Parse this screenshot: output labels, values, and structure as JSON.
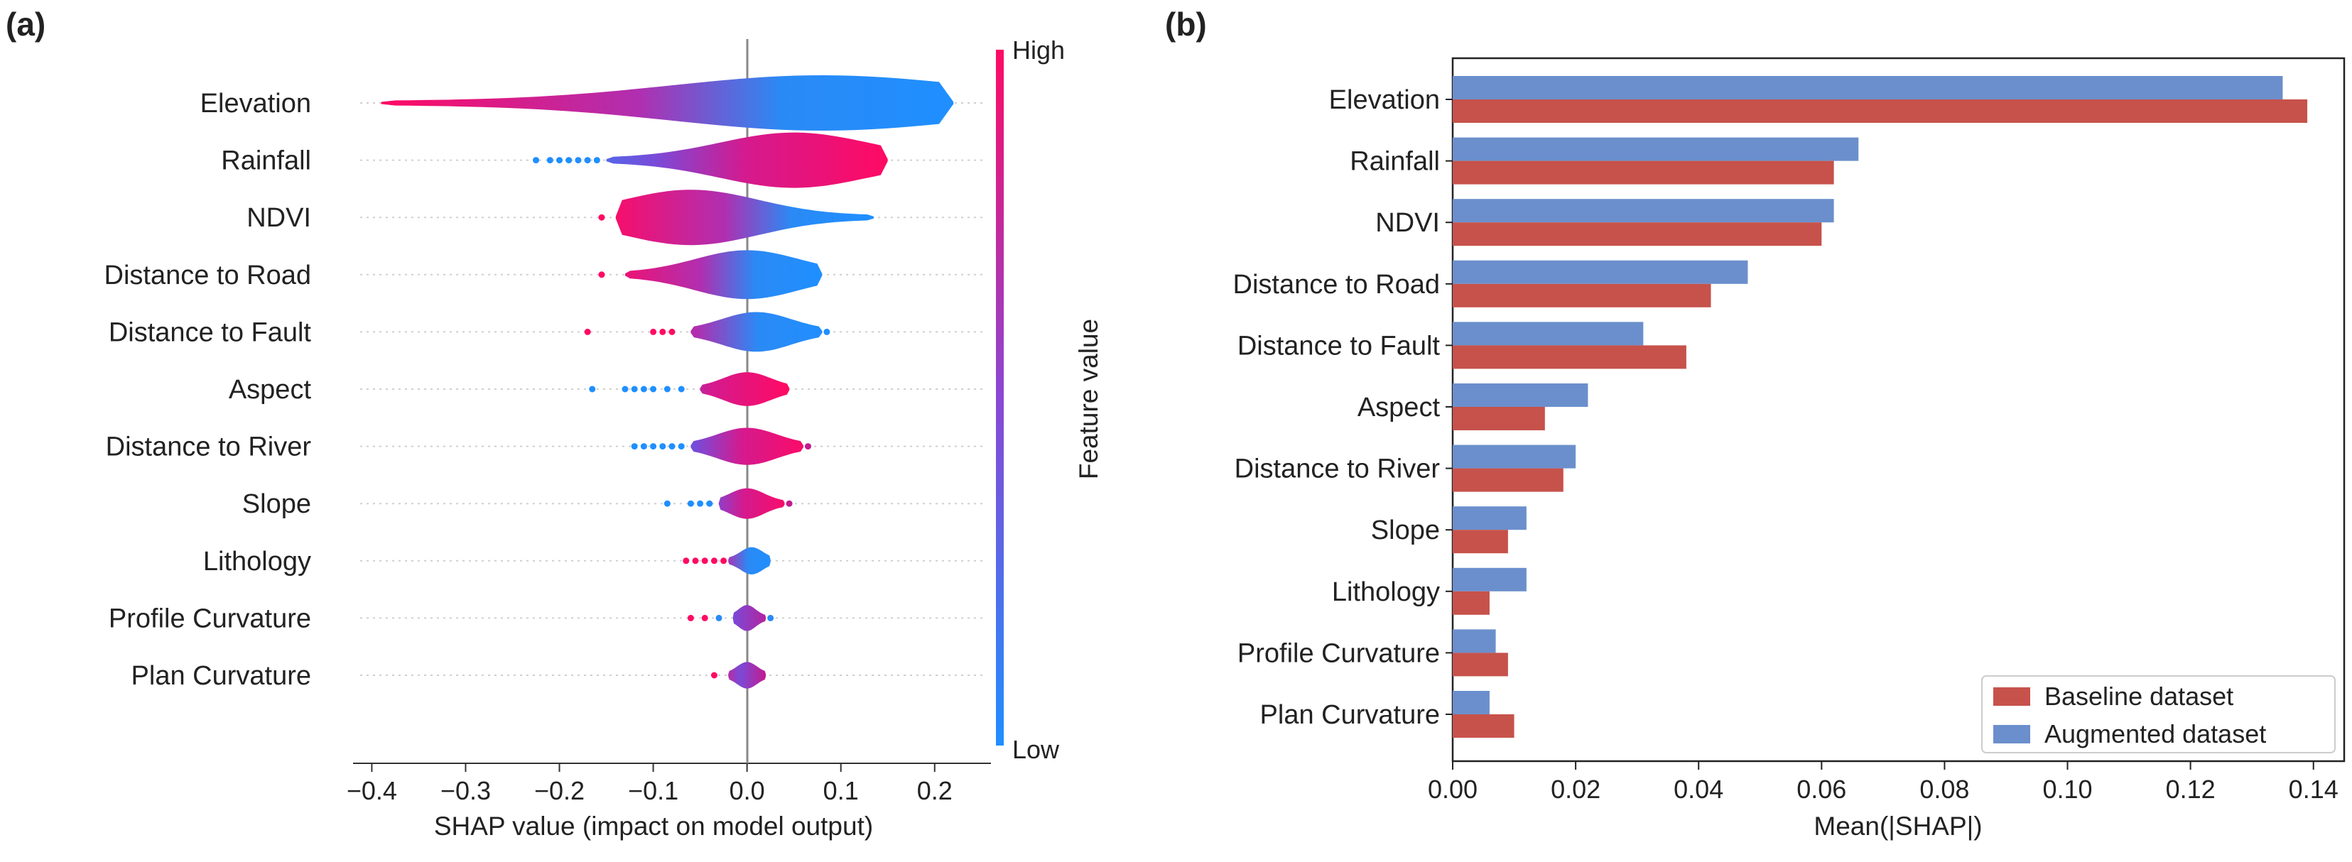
{
  "panel_labels": {
    "a": "(a)",
    "b": "(b)"
  },
  "colors": {
    "shap_low": "#1f8fff",
    "shap_high": "#ff0a63",
    "baseline": "#c6524b",
    "augmented": "#6b8fcc"
  },
  "chart_data": [
    {
      "type": "scatter",
      "subtype": "shap-beeswarm-violin",
      "title": "",
      "xlabel": "SHAP value (impact on model output)",
      "ylabel": "",
      "xlim": [
        -0.42,
        0.26
      ],
      "xticks": [
        -0.4,
        -0.3,
        -0.2,
        -0.1,
        0.0,
        0.1,
        0.2
      ],
      "xtick_labels": [
        "−0.4",
        "−0.3",
        "−0.2",
        "−0.1",
        "0.0",
        "0.1",
        "0.2"
      ],
      "colorbar": {
        "label": "Feature value",
        "high": "High",
        "low": "Low"
      },
      "features": [
        {
          "name": "Elevation",
          "min": -0.39,
          "max": 0.22,
          "core_min": -0.39,
          "core_max": 0.22,
          "peak": 0.08,
          "low_side": "right",
          "scatter": []
        },
        {
          "name": "Rainfall",
          "min": -0.23,
          "max": 0.15,
          "core_min": -0.15,
          "core_max": 0.15,
          "peak": 0.05,
          "low_side": "left",
          "scatter": [
            -0.225,
            -0.21,
            -0.2,
            -0.19,
            -0.18,
            -0.17,
            -0.16
          ]
        },
        {
          "name": "NDVI",
          "min": -0.155,
          "max": 0.135,
          "core_min": -0.14,
          "core_max": 0.135,
          "peak": -0.06,
          "low_side": "right",
          "scatter": [
            -0.155
          ]
        },
        {
          "name": "Distance to Road",
          "min": -0.155,
          "max": 0.08,
          "core_min": -0.13,
          "core_max": 0.08,
          "peak": 0.0,
          "low_side": "right",
          "scatter": [
            -0.155
          ]
        },
        {
          "name": "Distance to Fault",
          "min": -0.17,
          "max": 0.09,
          "core_min": -0.06,
          "core_max": 0.08,
          "peak": 0.01,
          "low_side": "right",
          "scatter": [
            -0.17,
            -0.1,
            -0.09,
            -0.08,
            0.085
          ]
        },
        {
          "name": "Aspect",
          "min": -0.165,
          "max": 0.045,
          "core_min": -0.05,
          "core_max": 0.045,
          "peak": 0.0,
          "low_side": "left",
          "scatter": [
            -0.165,
            -0.13,
            -0.12,
            -0.11,
            -0.1,
            -0.085,
            -0.07
          ]
        },
        {
          "name": "Distance to River",
          "min": -0.12,
          "max": 0.07,
          "core_min": -0.06,
          "core_max": 0.06,
          "peak": 0.0,
          "low_side": "left",
          "scatter": [
            -0.12,
            -0.11,
            -0.1,
            -0.09,
            -0.08,
            -0.07,
            0.065
          ]
        },
        {
          "name": "Slope",
          "min": -0.085,
          "max": 0.05,
          "core_min": -0.03,
          "core_max": 0.04,
          "peak": 0.0,
          "low_side": "left",
          "scatter": [
            -0.085,
            -0.06,
            -0.05,
            -0.04,
            0.045
          ]
        },
        {
          "name": "Lithology",
          "min": -0.065,
          "max": 0.03,
          "core_min": -0.02,
          "core_max": 0.025,
          "peak": 0.005,
          "low_side": "right",
          "scatter": [
            -0.065,
            -0.055,
            -0.045,
            -0.035,
            -0.025
          ]
        },
        {
          "name": "Profile Curvature",
          "min": -0.06,
          "max": 0.03,
          "core_min": -0.015,
          "core_max": 0.02,
          "peak": 0.0,
          "low_side": "mixed",
          "scatter": [
            -0.06,
            -0.045,
            -0.03,
            0.025
          ]
        },
        {
          "name": "Plan Curvature",
          "min": -0.035,
          "max": 0.02,
          "core_min": -0.02,
          "core_max": 0.02,
          "peak": 0.0,
          "low_side": "mixed",
          "scatter": [
            -0.035
          ]
        }
      ]
    },
    {
      "type": "bar",
      "orientation": "horizontal",
      "title": "",
      "xlabel": "Mean(|SHAP|)",
      "ylabel": "",
      "xlim": [
        0.0,
        0.145
      ],
      "xticks": [
        0.0,
        0.02,
        0.04,
        0.06,
        0.08,
        0.1,
        0.12,
        0.14
      ],
      "xtick_labels": [
        "0.00",
        "0.02",
        "0.04",
        "0.06",
        "0.08",
        "0.10",
        "0.12",
        "0.14"
      ],
      "categories": [
        "Elevation",
        "Rainfall",
        "NDVI",
        "Distance to Road",
        "Distance to Fault",
        "Aspect",
        "Distance to River",
        "Slope",
        "Lithology",
        "Profile Curvature",
        "Plan Curvature"
      ],
      "series": [
        {
          "name": "Augmented dataset",
          "values": [
            0.135,
            0.066,
            0.062,
            0.048,
            0.031,
            0.022,
            0.02,
            0.012,
            0.012,
            0.007,
            0.006
          ]
        },
        {
          "name": "Baseline dataset",
          "values": [
            0.139,
            0.062,
            0.06,
            0.042,
            0.038,
            0.015,
            0.018,
            0.009,
            0.006,
            0.009,
            0.01
          ]
        }
      ],
      "legend": {
        "position": "bottom-right",
        "entries": [
          "Baseline dataset",
          "Augmented dataset"
        ]
      }
    }
  ]
}
